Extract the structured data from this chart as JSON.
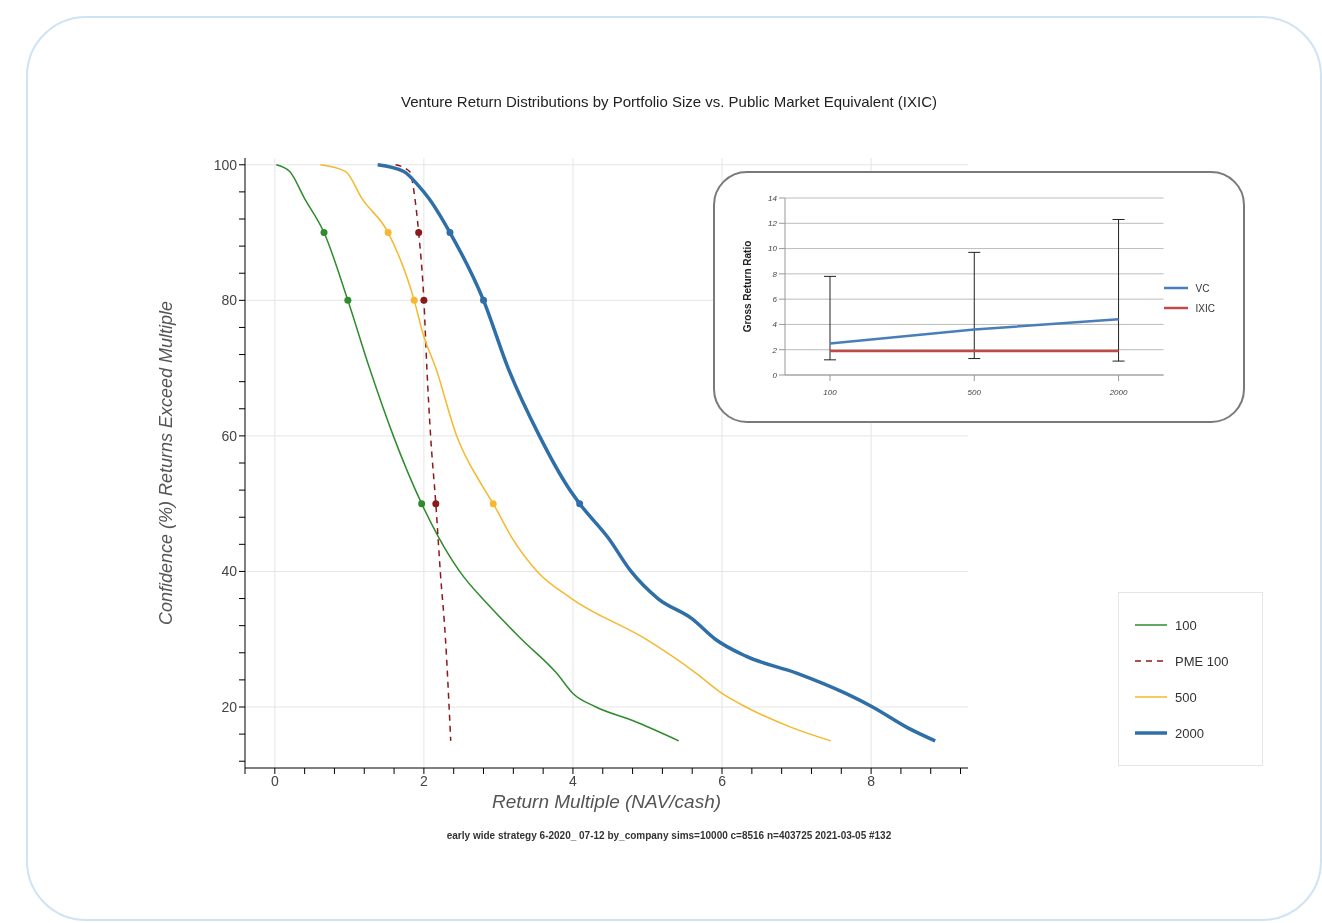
{
  "chart_data": [
    {
      "type": "line",
      "title": "Venture Return Distributions by Portfolio Size vs. Public Market Equivalent (IXIC)",
      "xlabel": "Return Multiple (NAV/cash)",
      "ylabel": "Confidence (%) Returns Exceed Multiple",
      "xlim": [
        -0.4,
        9.3
      ],
      "ylim": [
        11,
        101
      ],
      "xticks": [
        {
          "value": -0.4,
          "label": null
        },
        0,
        {
          "value": 0.4,
          "label": null
        },
        {
          "value": 0.8,
          "label": null
        },
        {
          "value": 1.2,
          "label": null
        },
        {
          "value": 1.6,
          "label": null
        },
        2,
        {
          "value": 2.4,
          "label": null
        },
        {
          "value": 2.8,
          "label": null
        },
        {
          "value": 3.2,
          "label": null
        },
        {
          "value": 3.6,
          "label": null
        },
        4,
        {
          "value": 4.4,
          "label": null
        },
        {
          "value": 4.8,
          "label": null
        },
        {
          "value": 5.2,
          "label": null
        },
        {
          "value": 5.6,
          "label": null
        },
        6,
        {
          "value": 6.4,
          "label": null
        },
        {
          "value": 6.8,
          "label": null
        },
        {
          "value": 7.2,
          "label": null
        },
        {
          "value": 7.6,
          "label": null
        },
        8,
        {
          "value": 8.4,
          "label": null
        },
        {
          "value": 8.8,
          "label": null
        },
        {
          "value": 9.2,
          "label": null
        }
      ],
      "yticks": [
        {
          "value": 12,
          "label": null
        },
        {
          "value": 16,
          "label": null
        },
        20,
        {
          "value": 24,
          "label": null
        },
        {
          "value": 28,
          "label": null
        },
        {
          "value": 32,
          "label": null
        },
        {
          "value": 36,
          "label": null
        },
        40,
        {
          "value": 44,
          "label": null
        },
        {
          "value": 48,
          "label": null
        },
        {
          "value": 52,
          "label": null
        },
        {
          "value": 56,
          "label": null
        },
        60,
        {
          "value": 64,
          "label": null
        },
        {
          "value": 68,
          "label": null
        },
        {
          "value": 72,
          "label": null
        },
        {
          "value": 76,
          "label": null
        },
        80,
        {
          "value": 84,
          "label": null
        },
        {
          "value": 88,
          "label": null
        },
        {
          "value": 92,
          "label": null
        },
        {
          "value": 96,
          "label": null
        },
        100
      ],
      "grid": true,
      "legend": "bottom right",
      "annotations": [
        "early wide strategy 6-2020_ 07-12 by_company sims=10000 c=8516 n=403725 2021-03-05 #132"
      ],
      "series": [
        {
          "name": "100",
          "color": "#2e8b2e",
          "x": [
            0.02,
            0.2,
            0.4,
            0.66,
            0.98,
            1.27,
            1.59,
            1.97,
            2.2,
            2.48,
            2.87,
            3.31,
            3.78,
            4.0,
            4.31,
            4.8,
            5.42
          ],
          "values": [
            100,
            99,
            95,
            90,
            80,
            70,
            60,
            50,
            45,
            40,
            35,
            30,
            25,
            22,
            20,
            18,
            15
          ]
        },
        {
          "name": "PME 100",
          "color": "#8b1a1a",
          "line_style": "dashed",
          "x": [
            1.62,
            1.81,
            1.88,
            1.93,
            2.0,
            2.04,
            2.09,
            2.16,
            2.22,
            2.29,
            2.36
          ],
          "values": [
            100,
            99,
            95,
            90,
            80,
            70,
            60,
            50,
            40,
            30,
            15
          ]
        },
        {
          "name": "500",
          "color": "#f5b82e",
          "x": [
            0.61,
            0.95,
            1.17,
            1.52,
            1.87,
            1.99,
            2.16,
            2.44,
            2.79,
            2.93,
            3.18,
            3.52,
            3.98,
            4.98,
            5.65,
            6.0,
            6.32,
            6.93,
            7.46
          ],
          "values": [
            100,
            99,
            95,
            90,
            80,
            75,
            70,
            60,
            52.5,
            50,
            45,
            40,
            36,
            30,
            25,
            22,
            20,
            17,
            15
          ]
        },
        {
          "name": "2000",
          "color": "#2f6fa8",
          "x": [
            1.38,
            1.73,
            1.92,
            2.07,
            2.35,
            2.8,
            3.13,
            3.55,
            3.93,
            4.09,
            4.47,
            4.78,
            5.14,
            5.6,
            5.91,
            6.32,
            7.0,
            7.66,
            8.02,
            8.48,
            8.86
          ],
          "values": [
            100,
            99,
            97,
            95,
            90,
            80,
            70,
            60,
            52.5,
            50,
            45,
            40,
            36,
            33,
            30,
            27.5,
            25,
            22,
            20,
            17,
            15
          ]
        },
        {
          "type": "scatter",
          "color": "#2e8b2e",
          "x": [
            0.66,
            0.98,
            1.97
          ],
          "values": [
            90,
            80,
            50
          ]
        },
        {
          "type": "scatter",
          "color": "#8b1a1a",
          "x": [
            1.93,
            2.0,
            2.16
          ],
          "values": [
            90,
            80,
            50
          ]
        },
        {
          "type": "scatter",
          "color": "#f5b82e",
          "x": [
            1.52,
            1.87,
            2.93
          ],
          "values": [
            90,
            80,
            50
          ]
        },
        {
          "type": "scatter",
          "color": "#2f6fa8",
          "x": [
            2.35,
            2.8,
            4.09
          ],
          "values": [
            90,
            80,
            50
          ]
        }
      ]
    },
    {
      "type": "line",
      "ylabel": "Gross Return Ratio",
      "categories": [
        "100",
        "500",
        "2000"
      ],
      "ylim": [
        0,
        14
      ],
      "yticks": [
        0,
        2,
        4,
        6,
        8,
        10,
        12,
        14
      ],
      "grid": "y",
      "legend": "right",
      "series": [
        {
          "name": "VC",
          "color": "#4a7ebb",
          "values": [
            2.5,
            3.6,
            4.4
          ],
          "errors": [
            [
              1.2,
              7.8
            ],
            [
              1.3,
              9.7
            ],
            [
              1.1,
              12.3
            ]
          ]
        },
        {
          "name": "IXIC",
          "color": "#be4b48",
          "values": [
            1.9,
            1.9,
            1.9
          ]
        }
      ]
    }
  ]
}
